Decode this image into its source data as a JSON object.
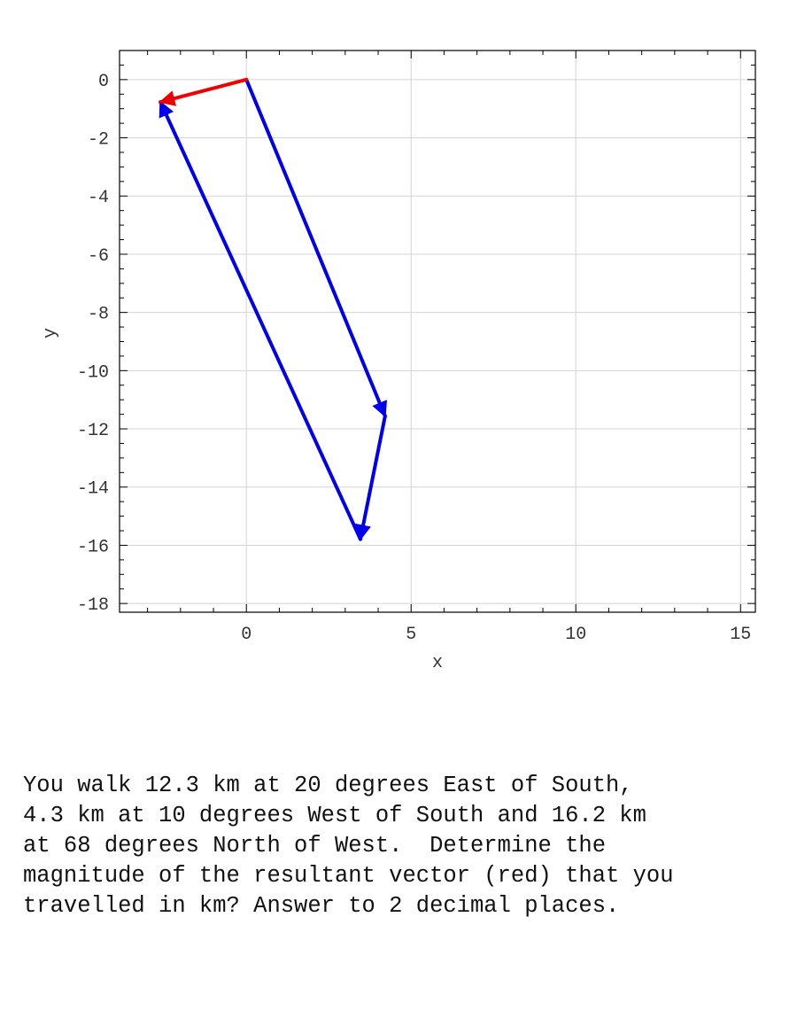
{
  "chart_data": {
    "type": "vector",
    "xlabel": "x",
    "ylabel": "y",
    "xlim": [
      -3.85,
      15.45
    ],
    "ylim": [
      -18.3,
      1.0
    ],
    "xticks": [
      0,
      5,
      10,
      15
    ],
    "yticks": [
      0,
      -2,
      -4,
      -6,
      -8,
      -10,
      -12,
      -14,
      -16,
      -18
    ],
    "grid": true,
    "vectors": [
      {
        "from": [
          0,
          0
        ],
        "to": [
          4.21,
          -11.56
        ],
        "color": "#0000ee"
      },
      {
        "from": [
          4.21,
          -11.56
        ],
        "to": [
          3.46,
          -15.79
        ],
        "color": "#0000ee"
      },
      {
        "from": [
          3.46,
          -15.79
        ],
        "to": [
          -2.61,
          -0.77
        ],
        "color": "#0000ee"
      },
      {
        "from": [
          0,
          0
        ],
        "to": [
          -2.61,
          -0.77
        ],
        "color": "#ee0000"
      }
    ]
  },
  "question": {
    "lines": [
      "You walk 12.3 km at 20 degrees East of South,",
      "4.3 km at 10 degrees West of South and 16.2 km",
      "at 68 degrees North of West.  Determine the",
      "magnitude of the resultant vector (red) that you",
      "travelled in km? Answer to 2 decimal places."
    ]
  }
}
